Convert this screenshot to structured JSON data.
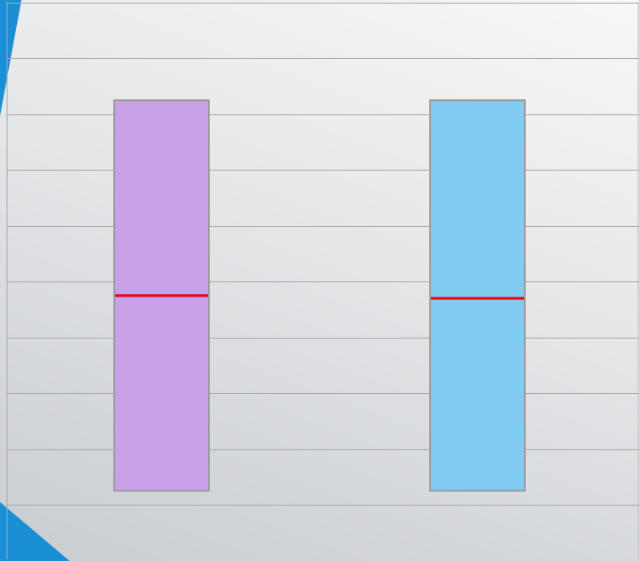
{
  "chart_data": {
    "type": "box",
    "title": "",
    "xlabel": "",
    "ylabel": "",
    "ylim": [
      0,
      9
    ],
    "grid": true,
    "categories": [
      "",
      ""
    ],
    "series": [
      {
        "low": 0.25,
        "median": 3.75,
        "high": 7.25,
        "color": "#c8a2e8"
      },
      {
        "low": 0.25,
        "median": 3.7,
        "high": 7.25,
        "color": "#82ccf3"
      }
    ],
    "median_color": "#e8000b",
    "box_outline_color": "#9a9a9a",
    "gridline_color": "#a8aaac",
    "accent_color": "#1a8fd6"
  }
}
